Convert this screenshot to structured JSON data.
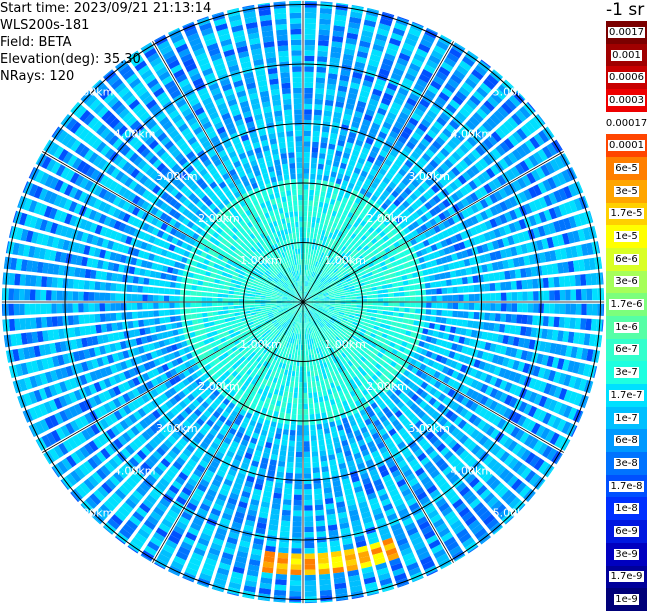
{
  "header": {
    "start_time": "Start time: 2023/09/21 21:13:14",
    "device": "WLS200s-181",
    "field": "Field: BETA",
    "elevation": "Elevation(deg): 35.30",
    "nrays": "NRays: 120"
  },
  "colorbar": {
    "unit": "-1 sr",
    "labels": [
      "0.0017",
      "0.001",
      "0.0006",
      "0.0003",
      "0.00017",
      "0.0001",
      "6e-5",
      "3e-5",
      "1.7e-5",
      "1e-5",
      "6e-6",
      "3e-6",
      "1.7e-6",
      "1e-6",
      "6e-7",
      "3e-7",
      "1.7e-7",
      "1e-7",
      "6e-8",
      "3e-8",
      "1.7e-8",
      "1e-8",
      "6e-9",
      "3e-9",
      "1.7e-9",
      "1e-9"
    ],
    "colors": [
      "#7b0000",
      "#a00000",
      "#c80000",
      "#ee0000",
      "#ffffff",
      "#ff4500",
      "#ff7f00",
      "#ffa500",
      "#ffd000",
      "#ffff00",
      "#d9ff26",
      "#a6ff59",
      "#7cff7c",
      "#55ffa6",
      "#33ffcc",
      "#1effe0",
      "#00e0ff",
      "#00bfff",
      "#0099ff",
      "#0073ff",
      "#0050ff",
      "#0030ff",
      "#0018e0",
      "#0000c0",
      "#00009a",
      "#000078"
    ]
  },
  "chart_data": {
    "type": "ppi",
    "field": "BETA",
    "nrays": 120,
    "elevation_deg": 35.3,
    "range_rings_km": [
      1,
      2,
      3,
      4,
      5
    ],
    "ring_labels": [
      "1.00km",
      "2.00km",
      "3.00km",
      "4.00km",
      "5.00km"
    ],
    "max_range_km": 5.06,
    "spoke_step_deg": 30,
    "background_level": "1e-7 to 1e-8",
    "inner_level": "1.7e-7",
    "features": [
      {
        "name": "enhanced backscatter band",
        "azimuth_deg": [
          160,
          190
        ],
        "range_km": [
          4.25,
          4.55
        ],
        "level": "3e-5 to 1e-5"
      }
    ]
  }
}
